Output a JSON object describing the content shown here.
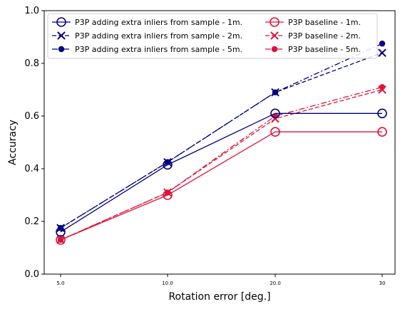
{
  "chart_data": {
    "type": "line",
    "xlabel": "Rotation error [deg.]",
    "ylabel": "Accuracy",
    "categories": [
      "5.0",
      "10.0",
      "20.0",
      "30"
    ],
    "ylim": [
      0.0,
      1.0
    ],
    "yticks": [
      "0.0",
      "0.2",
      "0.4",
      "0.6",
      "0.8",
      "1.0"
    ],
    "grid": false,
    "legend_position": "top-left, two columns",
    "series": [
      {
        "name": "P3P adding extra inliers from sample - 1m.",
        "values": [
          0.16,
          0.415,
          0.61,
          0.61
        ],
        "color": "#000080",
        "marker": "open-circle",
        "linestyle": "solid"
      },
      {
        "name": "P3P adding extra inliers from sample - 2m.",
        "values": [
          0.175,
          0.425,
          0.69,
          0.84
        ],
        "color": "#000080",
        "marker": "x",
        "linestyle": "dashed"
      },
      {
        "name": "P3P adding extra inliers from sample - 5m.",
        "values": [
          0.175,
          0.425,
          0.69,
          0.875
        ],
        "color": "#000080",
        "marker": "filled-circle",
        "linestyle": "dashdot"
      },
      {
        "name": "P3P baseline - 1m.",
        "values": [
          0.13,
          0.3,
          0.54,
          0.54
        ],
        "color": "#dc143c",
        "marker": "open-circle",
        "linestyle": "solid"
      },
      {
        "name": "P3P baseline - 2m.",
        "values": [
          0.13,
          0.31,
          0.59,
          0.7
        ],
        "color": "#dc143c",
        "marker": "x",
        "linestyle": "dashed"
      },
      {
        "name": "P3P baseline - 5m.",
        "values": [
          0.13,
          0.31,
          0.6,
          0.71
        ],
        "color": "#dc143c",
        "marker": "filled-circle",
        "linestyle": "dashdot"
      }
    ]
  }
}
